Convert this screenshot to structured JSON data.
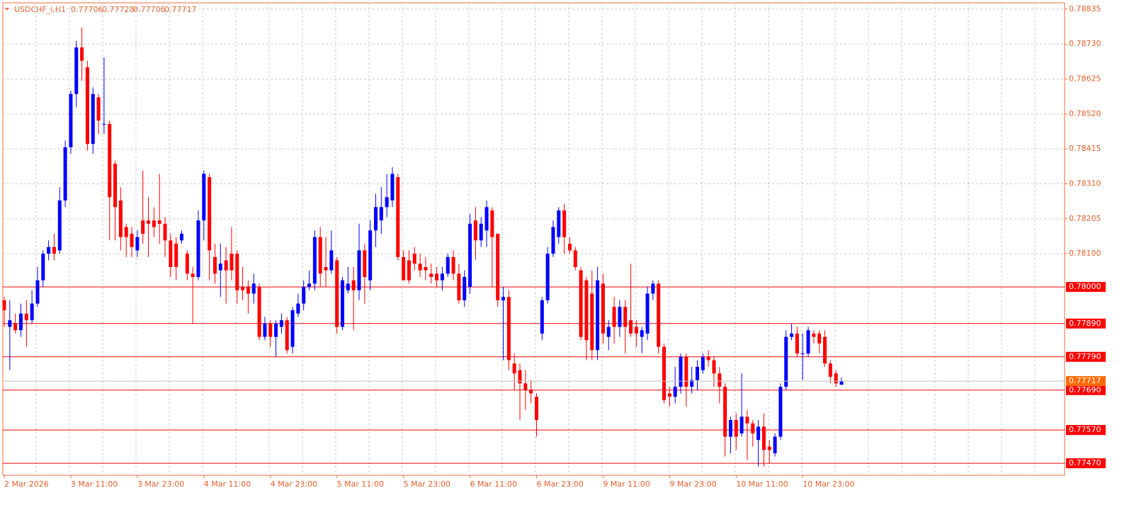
{
  "chart_data": {
    "type": "candlestick",
    "title": "USDCHF_i,H1",
    "categories": [
      "2 Mar 2026",
      null,
      null,
      null,
      null,
      null,
      null,
      null,
      null,
      null,
      null,
      null,
      "3 Mar 11:00",
      null,
      null,
      null,
      null,
      null,
      null,
      null,
      null,
      null,
      null,
      null,
      "3 Mar 23:00",
      null,
      null,
      null,
      null,
      null,
      null,
      null,
      null,
      null,
      null,
      null,
      "4 Mar 11:00",
      null,
      null,
      null,
      null,
      null,
      null,
      null,
      null,
      null,
      null,
      null,
      "4 Mar 23:00",
      null,
      null,
      null,
      null,
      null,
      null,
      null,
      null,
      null,
      null,
      null,
      "5 Mar 11:00",
      null,
      null,
      null,
      null,
      null,
      null,
      null,
      null,
      null,
      null,
      null,
      "5 Mar 23:00",
      null,
      null,
      null,
      null,
      null,
      null,
      null,
      null,
      null,
      null,
      null,
      "6 Mar 11:00",
      null,
      null,
      null,
      null,
      null,
      null,
      null,
      null,
      null,
      null,
      null,
      "6 Mar 23:00",
      null,
      null,
      null,
      null,
      null,
      null,
      null,
      null,
      null,
      null,
      null,
      "9 Mar 11:00",
      null,
      null,
      null,
      null,
      null,
      null,
      null,
      null,
      null,
      null,
      null,
      "9 Mar 23:00",
      null,
      null,
      null,
      null,
      null,
      null,
      null,
      null,
      null,
      null,
      null,
      "10 Mar 11:00",
      null,
      null,
      null,
      null,
      null,
      null,
      null,
      null,
      null,
      null,
      null,
      "10 Mar 23:00",
      null,
      null,
      null,
      null,
      null,
      null,
      null
    ],
    "open": [
      0.7796,
      0.7788,
      0.7789,
      0.7787,
      0.7792,
      0.779,
      0.7795,
      0.7802,
      0.781,
      0.7812,
      0.7811,
      0.7826,
      0.7842,
      0.7858,
      0.7872,
      0.7866,
      0.7843,
      0.7857,
      0.7849,
      0.7849,
      0.7837,
      0.7826,
      0.7818,
      0.7816,
      0.7811,
      0.782,
      0.782,
      0.782,
      0.782,
      0.7819,
      0.7814,
      0.7813,
      0.7814,
      0.781,
      0.7804,
      0.7803,
      0.782,
      0.7833,
      0.7809,
      0.7805,
      0.7808,
      0.781,
      0.781,
      0.78,
      0.78,
      0.7798,
      0.78,
      0.7785,
      0.7789,
      0.7785,
      0.7788,
      0.779,
      0.7782,
      0.7792,
      0.7795,
      0.78,
      0.7801,
      0.7815,
      0.7806,
      0.7805,
      0.7808,
      0.7788,
      0.7799,
      0.7802,
      0.7799,
      0.7811,
      0.7802,
      0.7817,
      0.782,
      0.7824,
      0.7826,
      0.7833,
      0.7809,
      0.7808,
      0.781,
      0.7807,
      0.7806,
      0.7804,
      0.7804,
      0.7802,
      0.7804,
      0.7809,
      0.7804,
      0.7796,
      0.78,
      0.782,
      0.7814,
      0.7817,
      0.7823,
      0.7816,
      0.7796,
      0.7797,
      0.7777,
      0.7775,
      0.7771,
      0.7769,
      0.7767,
      0.7786,
      0.7796,
      0.781,
      0.7815,
      0.7823,
      0.7813,
      0.7811,
      0.7805,
      0.7802,
      0.7798,
      0.7781,
      0.7801,
      0.7785,
      0.7794,
      0.7788,
      0.7794,
      0.779,
      0.7788,
      0.7785,
      0.7786,
      0.7798,
      0.7801,
      0.7782,
      0.7768,
      0.7767,
      0.777,
      0.7779,
      0.777,
      0.7772,
      0.7775,
      0.7779,
      0.7778,
      0.7774,
      0.777,
      0.7755,
      0.776,
      0.7756,
      0.7761,
      0.7759,
      0.7754,
      0.7758,
      0.7752,
      0.775,
      0.7755,
      0.777,
      0.7785,
      0.7786,
      0.778,
      0.778,
      0.7786,
      0.7786,
      0.7785,
      0.7777,
      0.7774,
      0.77706
    ],
    "high": [
      0.7797,
      0.7796,
      0.7792,
      0.7795,
      0.7796,
      0.7799,
      0.7806,
      0.7811,
      0.7814,
      0.7816,
      0.783,
      0.7844,
      0.7859,
      0.7874,
      0.7878,
      0.7868,
      0.786,
      0.7858,
      0.7869,
      0.785,
      0.7838,
      0.783,
      0.7819,
      0.7818,
      0.7817,
      0.7835,
      0.7827,
      0.7824,
      0.7834,
      0.7821,
      0.7816,
      0.7815,
      0.7817,
      0.7811,
      0.7806,
      0.7823,
      0.7835,
      0.7834,
      0.7813,
      0.7813,
      0.7812,
      0.7818,
      0.7811,
      0.7806,
      0.7802,
      0.7804,
      0.7801,
      0.7791,
      0.779,
      0.779,
      0.7792,
      0.7791,
      0.7794,
      0.7798,
      0.7802,
      0.7805,
      0.7817,
      0.7818,
      0.7815,
      0.7817,
      0.7809,
      0.7803,
      0.7806,
      0.7806,
      0.7819,
      0.7813,
      0.782,
      0.7828,
      0.783,
      0.7834,
      0.7836,
      0.7834,
      0.7811,
      0.7811,
      0.7812,
      0.781,
      0.7809,
      0.7807,
      0.7806,
      0.7806,
      0.781,
      0.7811,
      0.7807,
      0.7805,
      0.7822,
      0.7824,
      0.7821,
      0.7826,
      0.7824,
      0.7816,
      0.78,
      0.7799,
      0.778,
      0.7777,
      0.7775,
      0.7772,
      0.7768,
      0.7797,
      0.7812,
      0.782,
      0.7824,
      0.7825,
      0.7815,
      0.7812,
      0.7806,
      0.7803,
      0.7805,
      0.7806,
      0.7804,
      0.779,
      0.7797,
      0.7796,
      0.7796,
      0.7807,
      0.779,
      0.7788,
      0.78,
      0.7802,
      0.7802,
      0.7783,
      0.777,
      0.7776,
      0.778,
      0.778,
      0.7776,
      0.7778,
      0.778,
      0.7781,
      0.7779,
      0.7776,
      0.7771,
      0.7761,
      0.7762,
      0.7774,
      0.7763,
      0.776,
      0.776,
      0.7762,
      0.7754,
      0.7756,
      0.7771,
      0.7787,
      0.7789,
      0.7788,
      0.7786,
      0.7788,
      0.7787,
      0.7787,
      0.7787,
      0.7778,
      0.7775,
      0.77728
    ],
    "low": [
      0.7788,
      0.7775,
      0.7786,
      0.7785,
      0.7782,
      0.7789,
      0.7794,
      0.78,
      0.7808,
      0.7808,
      0.781,
      0.7824,
      0.784,
      0.7854,
      0.7862,
      0.7841,
      0.784,
      0.7846,
      0.7846,
      0.7814,
      0.7814,
      0.7811,
      0.7809,
      0.7809,
      0.7809,
      0.7813,
      0.7809,
      0.7815,
      0.7813,
      0.7809,
      0.7803,
      0.7802,
      0.7813,
      0.7802,
      0.7789,
      0.7802,
      0.7814,
      0.7802,
      0.7801,
      0.7797,
      0.7795,
      0.7802,
      0.7795,
      0.7796,
      0.7792,
      0.7795,
      0.7784,
      0.7784,
      0.7782,
      0.7779,
      0.7786,
      0.778,
      0.778,
      0.7791,
      0.7793,
      0.7799,
      0.7799,
      0.78,
      0.78,
      0.7804,
      0.7786,
      0.7787,
      0.7798,
      0.7787,
      0.7796,
      0.7795,
      0.7799,
      0.7812,
      0.7816,
      0.7821,
      0.7824,
      0.7808,
      0.7802,
      0.7801,
      0.7805,
      0.7803,
      0.7802,
      0.7801,
      0.78,
      0.7799,
      0.7803,
      0.7802,
      0.7795,
      0.7794,
      0.7798,
      0.7808,
      0.7812,
      0.7812,
      0.78,
      0.7794,
      0.7778,
      0.7775,
      0.7769,
      0.776,
      0.7763,
      0.7765,
      0.7755,
      0.7784,
      0.7795,
      0.7809,
      0.7813,
      0.781,
      0.781,
      0.7805,
      0.7784,
      0.7778,
      0.7778,
      0.7778,
      0.7783,
      0.7781,
      0.7783,
      0.7785,
      0.778,
      0.7785,
      0.7782,
      0.778,
      0.7784,
      0.7796,
      0.778,
      0.7765,
      0.7764,
      0.7765,
      0.7768,
      0.7764,
      0.7768,
      0.7769,
      0.7774,
      0.7776,
      0.777,
      0.7765,
      0.7749,
      0.775,
      0.7751,
      0.7755,
      0.7748,
      0.7752,
      0.7746,
      0.7746,
      0.7747,
      0.7749,
      0.7754,
      0.7769,
      0.7784,
      0.7779,
      0.7772,
      0.7779,
      0.7783,
      0.778,
      0.7776,
      0.7771,
      0.777,
      0.77706
    ],
    "close": [
      0.7793,
      0.779,
      0.7787,
      0.7792,
      0.779,
      0.7795,
      0.7802,
      0.781,
      0.7812,
      0.781,
      0.7826,
      0.7842,
      0.7858,
      0.7872,
      0.7868,
      0.7843,
      0.7858,
      0.785,
      0.7849,
      0.7827,
      0.7824,
      0.7815,
      0.7815,
      0.7812,
      0.7815,
      0.7816,
      0.7819,
      0.7818,
      0.7819,
      0.7814,
      0.7806,
      0.7806,
      0.7816,
      0.7804,
      0.7803,
      0.782,
      0.7834,
      0.7811,
      0.7804,
      0.7807,
      0.7805,
      0.7805,
      0.7799,
      0.7799,
      0.7798,
      0.7801,
      0.7785,
      0.7789,
      0.7785,
      0.7789,
      0.779,
      0.7781,
      0.7793,
      0.7795,
      0.78,
      0.7801,
      0.7815,
      0.7804,
      0.7805,
      0.7811,
      0.7788,
      0.7802,
      0.7801,
      0.7799,
      0.7811,
      0.7803,
      0.7817,
      0.7824,
      0.7824,
      0.7827,
      0.7834,
      0.7809,
      0.7802,
      0.7802,
      0.7807,
      0.7805,
      0.7805,
      0.7803,
      0.7802,
      0.7804,
      0.7809,
      0.7804,
      0.7796,
      0.7803,
      0.7819,
      0.7814,
      0.7819,
      0.7824,
      0.7815,
      0.7796,
      0.7797,
      0.7778,
      0.7774,
      0.7771,
      0.7769,
      0.7768,
      0.776,
      0.7796,
      0.781,
      0.7818,
      0.7823,
      0.7815,
      0.7811,
      0.7806,
      0.7785,
      0.7784,
      0.7781,
      0.7802,
      0.7786,
      0.7788,
      0.7788,
      0.7794,
      0.7788,
      0.7786,
      0.7786,
      0.7787,
      0.7798,
      0.7801,
      0.7782,
      0.7766,
      0.7767,
      0.777,
      0.7779,
      0.777,
      0.7772,
      0.7776,
      0.7779,
      0.7778,
      0.7774,
      0.777,
      0.7755,
      0.776,
      0.7755,
      0.7761,
      0.7759,
      0.7756,
      0.7758,
      0.7751,
      0.7751,
      0.7755,
      0.777,
      0.7785,
      0.7786,
      0.778,
      0.778,
      0.7787,
      0.7785,
      0.7783,
      0.7777,
      0.7773,
      0.7771,
      0.77717
    ],
    "up_color": "#0000ff",
    "down_color": "#ff0000",
    "level_color": "#ff0000",
    "bid_color": "#ff6a00",
    "ylim": [
      0.77434,
      0.78854
    ],
    "yticks": [
      0.78835,
      {
        "value": 0.7873,
        "label": "0.78730"
      },
      0.78625,
      {
        "value": 0.7852,
        "label": "0.78520"
      },
      0.78415,
      {
        "value": 0.7831,
        "label": "0.78310"
      },
      0.78205,
      {
        "value": 0.781,
        "label": "0.78100"
      }
    ],
    "levels": [
      {
        "value": 0.78,
        "label": "0.78000"
      },
      {
        "value": 0.7789,
        "label": "0.77890"
      },
      {
        "value": 0.7779,
        "label": "0.77790"
      },
      {
        "value": 0.7769,
        "label": "0.77690"
      },
      {
        "value": 0.7757,
        "label": "0.77570"
      },
      {
        "value": 0.7747,
        "label": "0.77470"
      }
    ],
    "grid": true
  }
}
